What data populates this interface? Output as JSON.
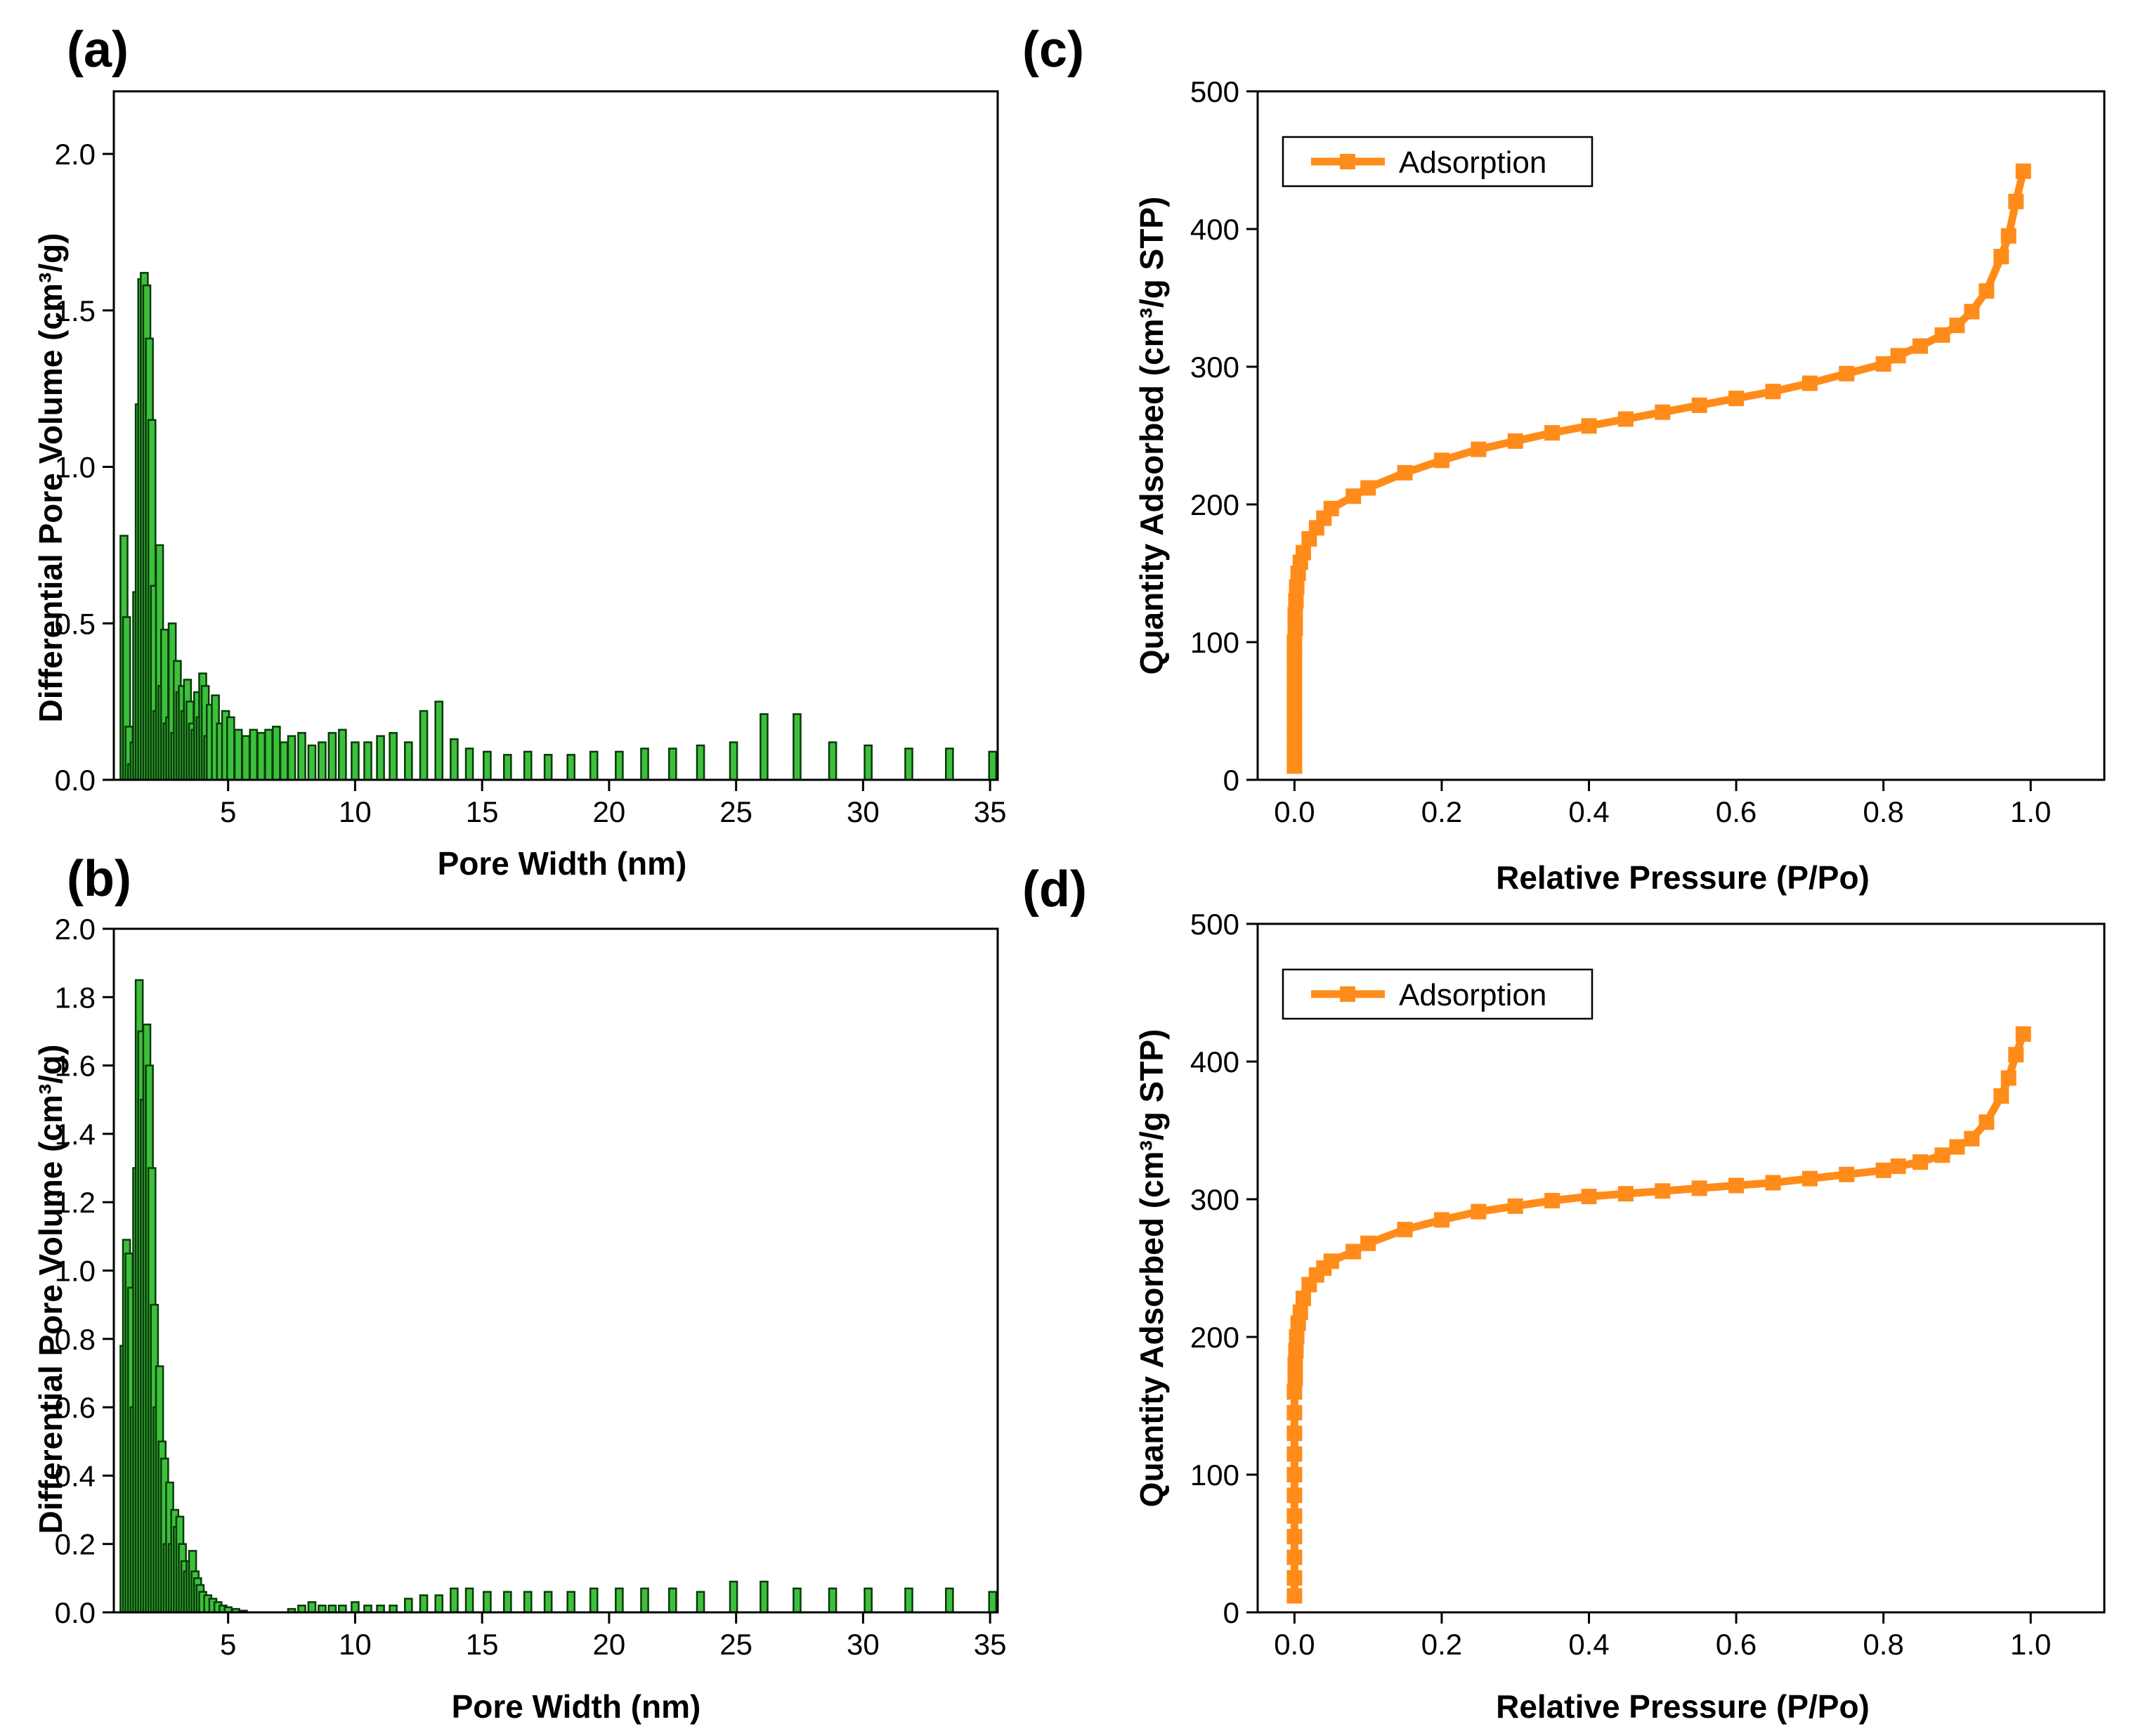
{
  "figure": {
    "colors": {
      "bar_fill": "#3cc03c",
      "bar_stroke": "#0a3a0a",
      "line": "#ff8c1a",
      "axis": "#000000"
    }
  },
  "chart_data": [
    {
      "panel": "(a)",
      "type": "bar",
      "title": "",
      "xlabel": "Pore Width (nm)",
      "ylabel": "Differential Pore Volume (cm³/g)",
      "xlim": [
        0.5,
        35.3
      ],
      "ylim": [
        0,
        2.2
      ],
      "xticks": [
        "5",
        "10",
        "15",
        "20",
        "25",
        "30",
        "35"
      ],
      "xtick_values": [
        5,
        10,
        15,
        20,
        25,
        30,
        35
      ],
      "yticks": [
        "0.0",
        "0.5",
        "1.0",
        "1.5",
        "2.0"
      ],
      "ytick_values": [
        0,
        0.5,
        1.0,
        1.5,
        2.0
      ],
      "bar_width": 0.28,
      "x": [
        0.9,
        1.0,
        1.1,
        1.2,
        1.3,
        1.4,
        1.5,
        1.6,
        1.7,
        1.8,
        1.9,
        2.0,
        2.1,
        2.2,
        2.3,
        2.4,
        2.5,
        2.6,
        2.7,
        2.8,
        2.9,
        3.0,
        3.1,
        3.2,
        3.3,
        3.4,
        3.5,
        3.6,
        3.7,
        3.8,
        3.9,
        4.0,
        4.1,
        4.2,
        4.3,
        4.5,
        4.7,
        4.9,
        5.1,
        5.4,
        5.7,
        6.0,
        6.3,
        6.6,
        6.9,
        7.2,
        7.5,
        7.9,
        8.3,
        8.7,
        9.1,
        9.5,
        10.0,
        10.5,
        11.0,
        11.5,
        12.1,
        12.7,
        13.3,
        13.9,
        14.5,
        15.2,
        16.0,
        16.8,
        17.6,
        18.5,
        19.4,
        20.4,
        21.4,
        22.5,
        23.6,
        24.9,
        26.1,
        27.4,
        28.8,
        30.2,
        31.8,
        33.4,
        35.1
      ],
      "values": [
        0.78,
        0.52,
        0.17,
        0.05,
        0.12,
        0.6,
        1.2,
        1.6,
        1.62,
        1.58,
        1.41,
        1.15,
        0.62,
        0.22,
        0.75,
        0.3,
        0.48,
        0.18,
        0.2,
        0.5,
        0.15,
        0.38,
        0.28,
        0.3,
        0.22,
        0.32,
        0.25,
        0.18,
        0.16,
        0.28,
        0.2,
        0.34,
        0.3,
        0.14,
        0.24,
        0.27,
        0.18,
        0.22,
        0.2,
        0.16,
        0.14,
        0.16,
        0.15,
        0.16,
        0.17,
        0.12,
        0.14,
        0.15,
        0.11,
        0.12,
        0.15,
        0.16,
        0.12,
        0.12,
        0.14,
        0.15,
        0.12,
        0.22,
        0.25,
        0.13,
        0.1,
        0.09,
        0.08,
        0.09,
        0.08,
        0.08,
        0.09,
        0.09,
        0.1,
        0.1,
        0.11,
        0.12,
        0.21,
        0.21,
        0.12,
        0.11,
        0.1,
        0.1,
        0.09
      ]
    },
    {
      "panel": "(b)",
      "type": "bar",
      "title": "",
      "xlabel": "Pore Width (nm)",
      "ylabel": "Differential Pore Volume (cm³/g)",
      "xlim": [
        0.5,
        35.3
      ],
      "ylim": [
        0,
        2.0
      ],
      "xticks": [
        "5",
        "10",
        "15",
        "20",
        "25",
        "30",
        "35"
      ],
      "xtick_values": [
        5,
        10,
        15,
        20,
        25,
        30,
        35
      ],
      "yticks": [
        "0.0",
        "0.2",
        "0.4",
        "0.6",
        "0.8",
        "1.0",
        "1.2",
        "1.4",
        "1.6",
        "1.8",
        "2.0"
      ],
      "ytick_values": [
        0,
        0.2,
        0.4,
        0.6,
        0.8,
        1.0,
        1.2,
        1.4,
        1.6,
        1.8,
        2.0
      ],
      "bar_width": 0.28,
      "x": [
        0.9,
        1.0,
        1.1,
        1.2,
        1.3,
        1.4,
        1.5,
        1.6,
        1.7,
        1.8,
        1.9,
        2.0,
        2.1,
        2.2,
        2.3,
        2.4,
        2.5,
        2.6,
        2.7,
        2.8,
        2.9,
        3.0,
        3.1,
        3.2,
        3.3,
        3.4,
        3.5,
        3.6,
        3.7,
        3.8,
        3.9,
        4.0,
        4.2,
        4.4,
        4.6,
        4.8,
        5.0,
        5.3,
        5.6,
        7.5,
        7.9,
        8.3,
        8.7,
        9.1,
        9.5,
        10.0,
        10.5,
        11.0,
        11.5,
        12.1,
        12.7,
        13.3,
        13.9,
        14.5,
        15.2,
        16.0,
        16.8,
        17.6,
        18.5,
        19.4,
        20.4,
        21.4,
        22.5,
        23.6,
        24.9,
        26.1,
        27.4,
        28.8,
        30.2,
        31.8,
        33.4,
        35.1
      ],
      "values": [
        0.78,
        1.09,
        1.05,
        0.95,
        0.6,
        1.3,
        1.85,
        1.7,
        1.5,
        1.72,
        1.6,
        1.3,
        0.9,
        0.6,
        0.72,
        0.5,
        0.45,
        0.2,
        0.38,
        0.2,
        0.3,
        0.25,
        0.28,
        0.2,
        0.15,
        0.12,
        0.15,
        0.18,
        0.12,
        0.1,
        0.08,
        0.06,
        0.05,
        0.04,
        0.03,
        0.02,
        0.015,
        0.01,
        0.005,
        0.01,
        0.02,
        0.03,
        0.02,
        0.02,
        0.02,
        0.03,
        0.02,
        0.02,
        0.02,
        0.04,
        0.05,
        0.05,
        0.07,
        0.07,
        0.06,
        0.06,
        0.06,
        0.06,
        0.06,
        0.07,
        0.07,
        0.07,
        0.07,
        0.06,
        0.09,
        0.09,
        0.07,
        0.07,
        0.07,
        0.07,
        0.07,
        0.06
      ]
    },
    {
      "panel": "(c)",
      "type": "line",
      "title": "",
      "xlabel": "Relative Pressure (P/Po)",
      "ylabel": "Quantity Adsorbed (cm³/g STP)",
      "xlim": [
        -0.05,
        1.1
      ],
      "ylim": [
        0,
        500
      ],
      "xticks": [
        "0.0",
        "0.2",
        "0.4",
        "0.6",
        "0.8",
        "1.0"
      ],
      "xtick_values": [
        0,
        0.2,
        0.4,
        0.6,
        0.8,
        1.0
      ],
      "yticks": [
        "0",
        "100",
        "200",
        "300",
        "400",
        "500"
      ],
      "ytick_values": [
        0,
        100,
        200,
        300,
        400,
        500
      ],
      "legend": [
        "Adsorption"
      ],
      "legend_position": "top-left",
      "series": [
        {
          "name": "Adsorption",
          "x": [
            0.0,
            0.0,
            0.0,
            0.0,
            0.0,
            0.0,
            0.0,
            0.0,
            0.0,
            0.0,
            0.001,
            0.001,
            0.002,
            0.003,
            0.005,
            0.008,
            0.012,
            0.02,
            0.03,
            0.04,
            0.05,
            0.08,
            0.1,
            0.15,
            0.2,
            0.25,
            0.3,
            0.35,
            0.4,
            0.45,
            0.5,
            0.55,
            0.6,
            0.65,
            0.7,
            0.75,
            0.8,
            0.82,
            0.85,
            0.88,
            0.9,
            0.92,
            0.94,
            0.96,
            0.97,
            0.98,
            0.99
          ],
          "y": [
            10,
            20,
            30,
            40,
            50,
            60,
            70,
            80,
            90,
            100,
            110,
            120,
            130,
            140,
            150,
            158,
            165,
            175,
            183,
            190,
            197,
            206,
            212,
            223,
            232,
            240,
            246,
            252,
            257,
            262,
            267,
            272,
            277,
            282,
            288,
            295,
            302,
            308,
            315,
            323,
            330,
            340,
            355,
            380,
            395,
            420,
            442
          ]
        }
      ]
    },
    {
      "panel": "(d)",
      "type": "line",
      "title": "",
      "xlabel": "Relative Pressure (P/Po)",
      "ylabel": "Quantity Adsorbed (cm³/g STP)",
      "xlim": [
        -0.05,
        1.1
      ],
      "ylim": [
        0,
        500
      ],
      "xticks": [
        "0.0",
        "0.2",
        "0.4",
        "0.6",
        "0.8",
        "1.0"
      ],
      "xtick_values": [
        0,
        0.2,
        0.4,
        0.6,
        0.8,
        1.0
      ],
      "yticks": [
        "0",
        "100",
        "200",
        "300",
        "400",
        "500"
      ],
      "ytick_values": [
        0,
        100,
        200,
        300,
        400,
        500
      ],
      "legend": [
        "Adsorption"
      ],
      "legend_position": "top-left",
      "series": [
        {
          "name": "Adsorption",
          "x": [
            0.0,
            0.0,
            0.0,
            0.0,
            0.0,
            0.0,
            0.0,
            0.0,
            0.0,
            0.0,
            0.0,
            0.001,
            0.001,
            0.002,
            0.003,
            0.005,
            0.008,
            0.012,
            0.02,
            0.03,
            0.04,
            0.05,
            0.08,
            0.1,
            0.15,
            0.2,
            0.25,
            0.3,
            0.35,
            0.4,
            0.45,
            0.5,
            0.55,
            0.6,
            0.65,
            0.7,
            0.75,
            0.8,
            0.82,
            0.85,
            0.88,
            0.9,
            0.92,
            0.94,
            0.96,
            0.97,
            0.98,
            0.99
          ],
          "y": [
            12,
            25,
            40,
            55,
            70,
            85,
            100,
            115,
            130,
            145,
            160,
            170,
            180,
            190,
            200,
            210,
            218,
            228,
            238,
            245,
            250,
            255,
            262,
            268,
            278,
            285,
            291,
            295,
            299,
            302,
            304,
            306,
            308,
            310,
            312,
            315,
            318,
            321,
            324,
            327,
            332,
            338,
            344,
            356,
            375,
            388,
            405,
            420
          ]
        }
      ]
    }
  ]
}
